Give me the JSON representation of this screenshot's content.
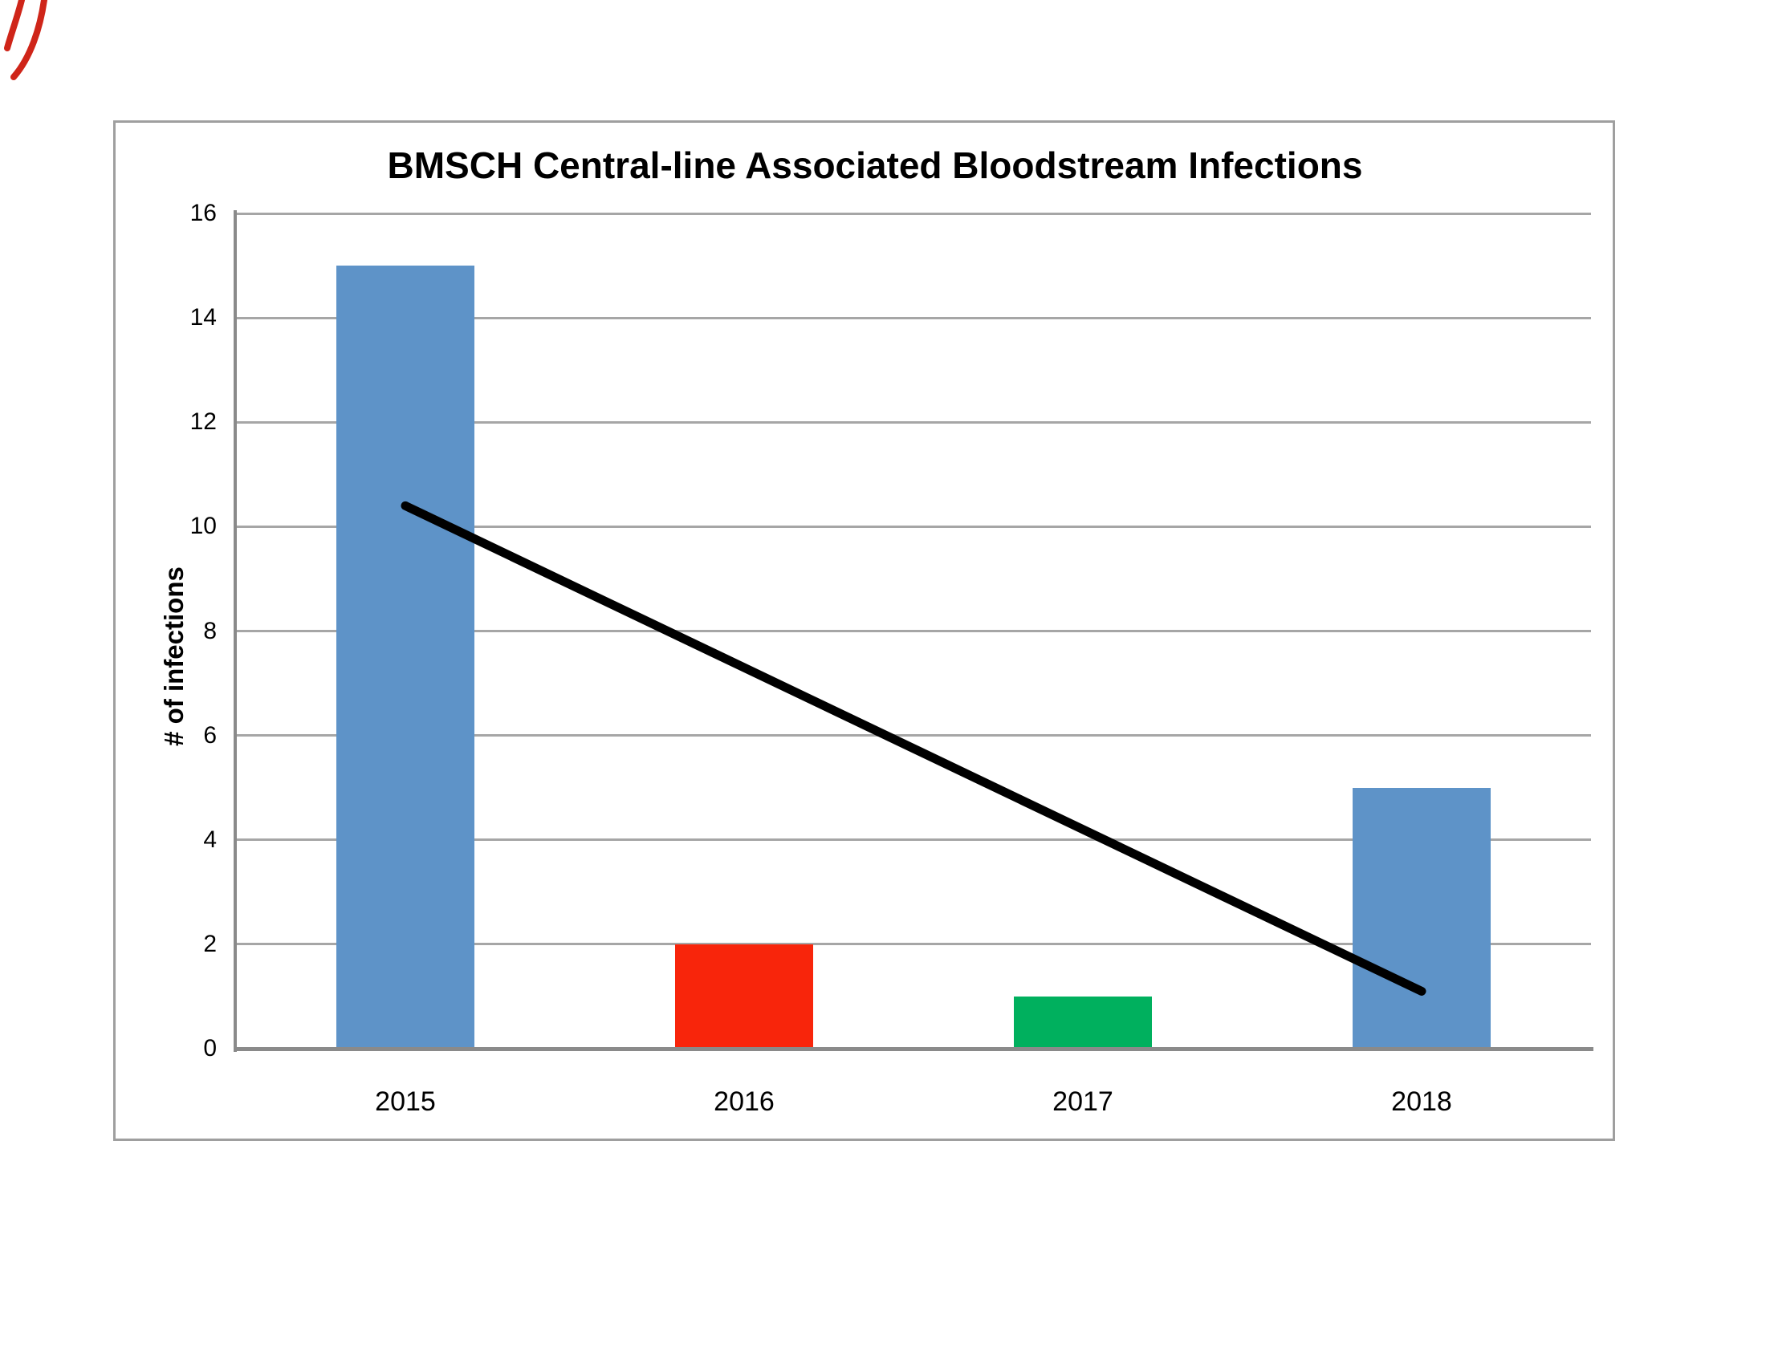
{
  "figure": {
    "border_color": "#9f9f9f",
    "background": "#ffffff"
  },
  "annotations": {
    "red_pen_mark_color": "#cf2519"
  },
  "chart_data": {
    "type": "bar",
    "title": "BMSCH Central-line Associated Bloodstream Infections",
    "categories": [
      "2015",
      "2016",
      "2017",
      "2018"
    ],
    "values": [
      15,
      2,
      1,
      5
    ],
    "bar_colors": [
      "#5E93C8",
      "#F8250B",
      "#00B05E",
      "#5E93C8"
    ],
    "ylabel": "# of infections",
    "xlabel": "",
    "ylim": [
      0,
      16
    ],
    "yticks": [
      0,
      2,
      4,
      6,
      8,
      10,
      12,
      14,
      16
    ],
    "grid": true,
    "gridline_color": "#a6a6a6",
    "axis_color": "#8a8a8a",
    "legend": null,
    "trendline": {
      "type": "linear",
      "start_value": 10.4,
      "end_value": 1.1,
      "color": "#000000",
      "stroke_width": 11
    }
  }
}
